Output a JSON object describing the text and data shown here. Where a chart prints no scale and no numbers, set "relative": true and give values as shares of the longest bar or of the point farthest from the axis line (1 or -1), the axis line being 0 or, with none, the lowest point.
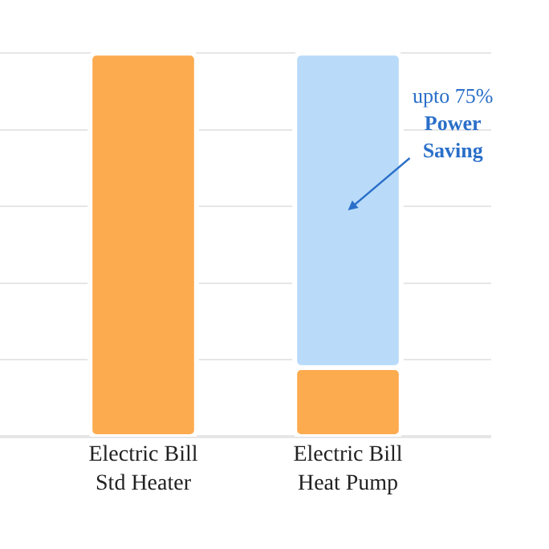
{
  "chart_data": {
    "type": "bar",
    "relative": true,
    "stacked": true,
    "categories": [
      "Electric Bill\nStd Heater",
      "Electric Bill\nHeat Pump"
    ],
    "series": [
      {
        "color": "#fdab4f",
        "values": [
          1,
          0.18
        ]
      },
      {
        "color": "#b9dbf9",
        "values": [
          null,
          0.82
        ]
      }
    ],
    "annotations": [
      "upto 75%\nPower\nSaving"
    ],
    "grid": "y"
  }
}
